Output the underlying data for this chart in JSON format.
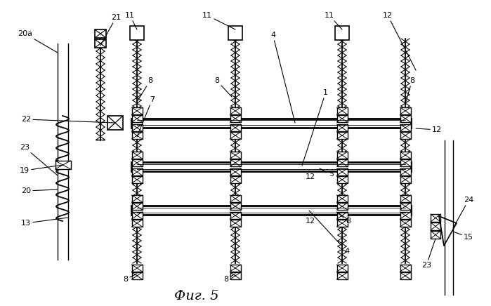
{
  "bg_color": "#ffffff",
  "line_color": "#000000",
  "fig_label": "Фиг. 5"
}
